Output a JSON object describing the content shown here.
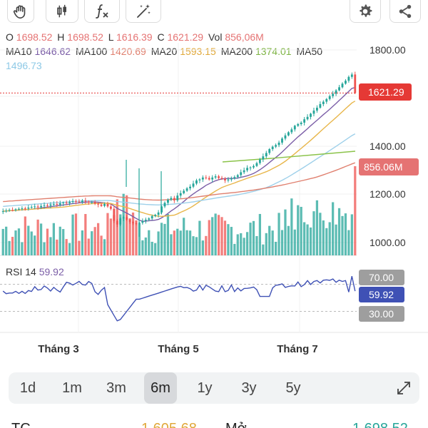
{
  "ohlc": {
    "o_label": "O",
    "o": "1698.52",
    "h_label": "H",
    "h": "1698.52",
    "l_label": "L",
    "l": "1616.39",
    "c_label": "C",
    "c": "1621.29",
    "vol_label": "Vol",
    "vol": "856,06M"
  },
  "ma": {
    "ma10_label": "MA10",
    "ma10": "1646.62",
    "ma100_label": "MA100",
    "ma100": "1420.69",
    "ma20_label": "MA20",
    "ma20": "1593.15",
    "ma200_label": "MA200",
    "ma200": "1374.01",
    "ma50_label": "MA50",
    "ma50": "1496.73"
  },
  "colors": {
    "up": "#26a69a",
    "down": "#ef5350",
    "ma10": "#7b5ea7",
    "ma20": "#e8b64a",
    "ma50": "#9ed0ea",
    "ma100": "#e0806f",
    "ma200": "#8bc34a",
    "rsi": "#3f51b5"
  },
  "icons": [
    "hand-icon",
    "candlestick-icon",
    "function-icon",
    "magic-icon",
    "gear-icon",
    "share-icon",
    "expand-icon"
  ],
  "price_tag": "1621.29",
  "volume_tag": "856.06M",
  "rsi": {
    "label": "RSI 14",
    "value": "59.92",
    "upper": "70.00",
    "lower": "30.00"
  },
  "chart_data": {
    "type": "candlestick",
    "y_ticks": [
      "1800.00",
      "1400.00",
      "1200.00",
      "1000.00"
    ],
    "x_ticks": [
      "Tháng 3",
      "Tháng 5",
      "Tháng 7"
    ],
    "price_range": [
      1000,
      1800
    ],
    "last_close": 1621.29,
    "last_volume": "856.06M",
    "rsi_range": [
      0,
      100
    ],
    "rsi_levels": [
      70,
      30
    ],
    "rsi_last": 59.92,
    "closes": [
      1130,
      1132,
      1135,
      1134,
      1138,
      1140,
      1142,
      1141,
      1145,
      1148,
      1150,
      1147,
      1152,
      1155,
      1153,
      1158,
      1160,
      1157,
      1163,
      1166,
      1164,
      1169,
      1172,
      1170,
      1168,
      1174,
      1170,
      1166,
      1168,
      1162,
      1158,
      1152,
      1160,
      1150,
      1140,
      1090,
      1075,
      1100,
      1105,
      1095,
      1085,
      1080,
      1078,
      1082,
      1090,
      1095,
      1100,
      1110,
      1115,
      1125,
      1150,
      1165,
      1178,
      1185,
      1175,
      1195,
      1205,
      1215,
      1225,
      1232,
      1245,
      1258,
      1262,
      1270,
      1268,
      1262,
      1270,
      1275,
      1268,
      1265,
      1258,
      1262,
      1266,
      1272,
      1280,
      1292,
      1300,
      1310,
      1312,
      1318,
      1330,
      1345,
      1358,
      1372,
      1388,
      1398,
      1405,
      1415,
      1432,
      1445,
      1458,
      1470,
      1485,
      1492,
      1498,
      1512,
      1522,
      1535,
      1548,
      1560,
      1575,
      1585,
      1596,
      1608,
      1618,
      1632,
      1645,
      1660,
      1672,
      1688,
      1698,
      1621
    ]
  },
  "ranges": [
    "1d",
    "1m",
    "3m",
    "6m",
    "1y",
    "3y",
    "5y"
  ],
  "active_range": "6m",
  "bottom": {
    "left_label": "TC",
    "left_value": "1,605.68",
    "mid_label": "Mở",
    "right_value": "1,698.52"
  }
}
